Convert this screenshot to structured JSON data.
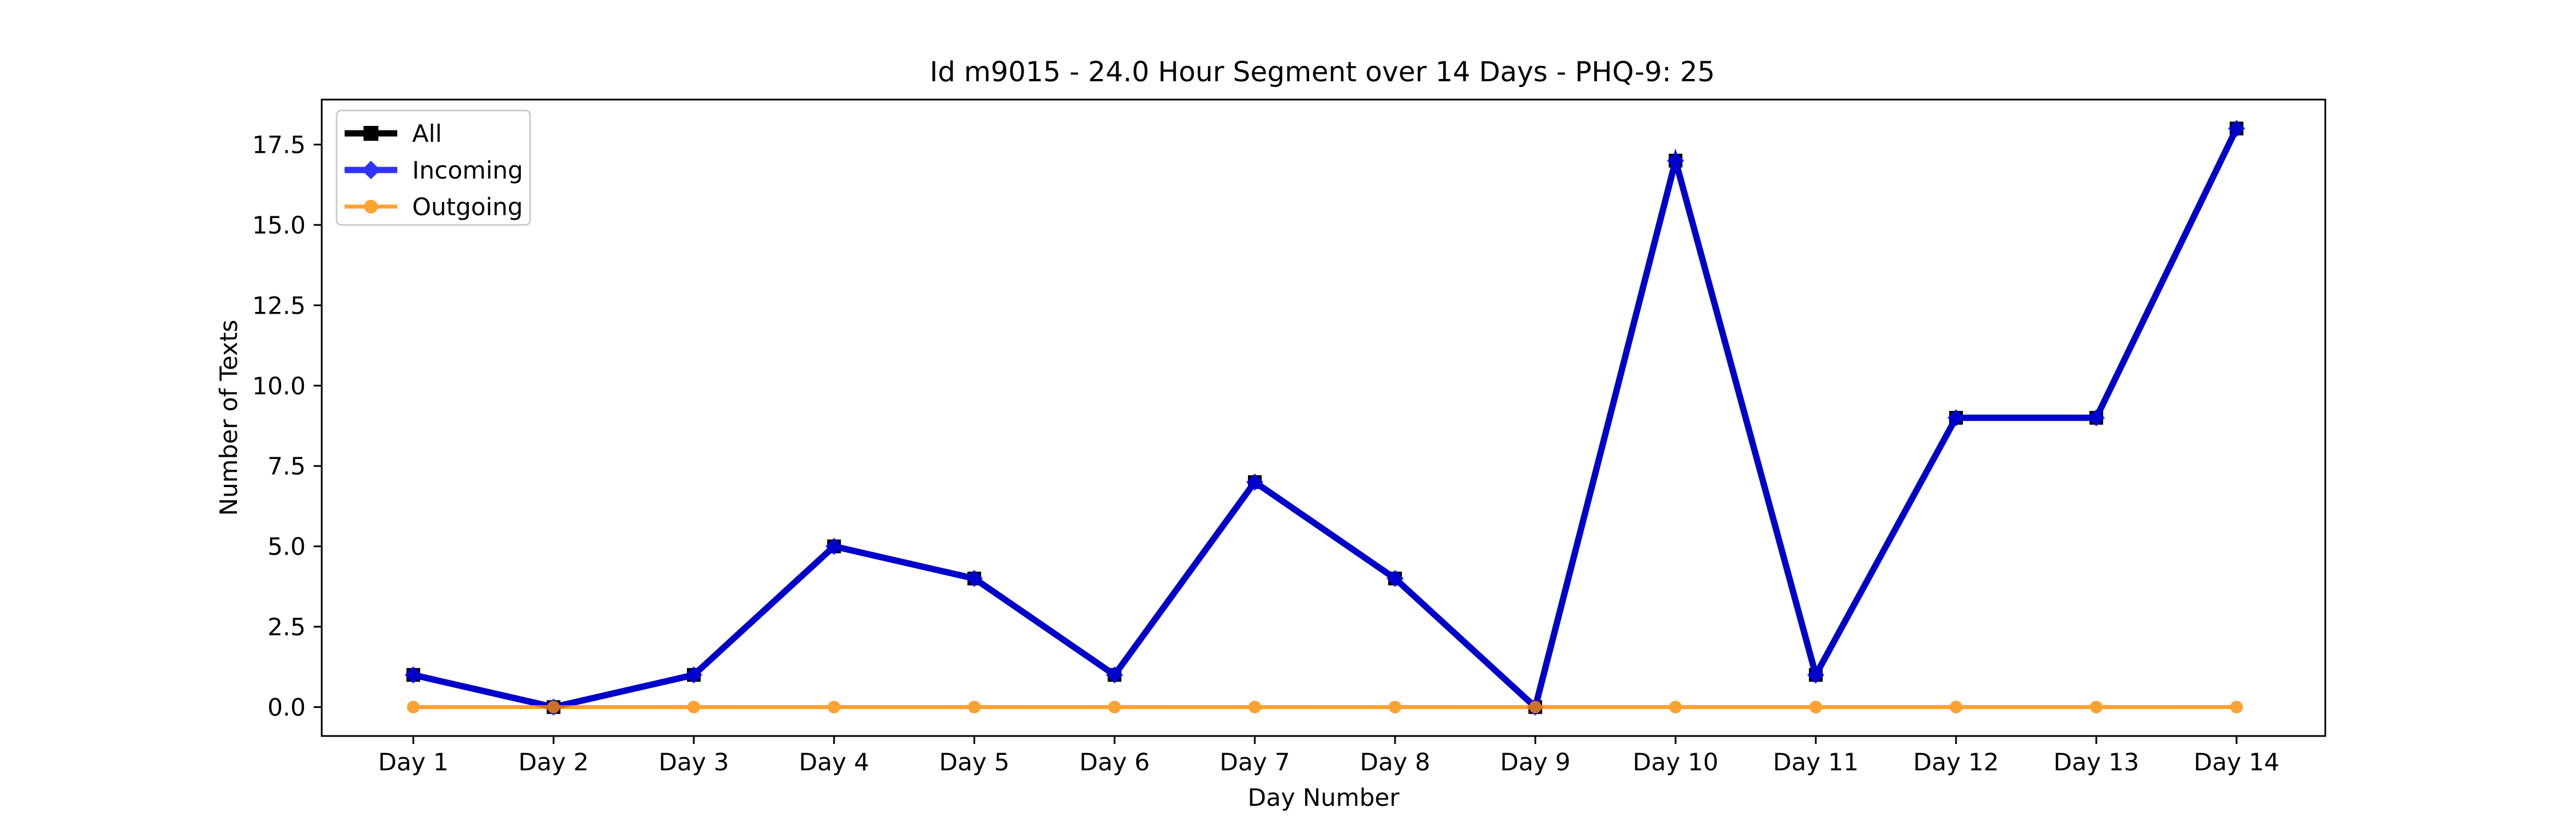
{
  "chart_data": {
    "type": "line",
    "title": "Id m9015 - 24.0 Hour Segment over 14 Days - PHQ-9: 25",
    "xlabel": "Day Number",
    "ylabel": "Number of Texts",
    "categories": [
      "Day 1",
      "Day 2",
      "Day 3",
      "Day 4",
      "Day 5",
      "Day 6",
      "Day 7",
      "Day 8",
      "Day 9",
      "Day 10",
      "Day 11",
      "Day 12",
      "Day 13",
      "Day 14"
    ],
    "ylim": [
      -0.9,
      18.9
    ],
    "yticks": [
      "0.0",
      "2.5",
      "5.0",
      "7.5",
      "10.0",
      "12.5",
      "15.0",
      "17.5"
    ],
    "grid": false,
    "legend_position": "upper-left",
    "series": [
      {
        "name": "All",
        "values": [
          1,
          0,
          1,
          5,
          4,
          1,
          7,
          4,
          0,
          17,
          1,
          9,
          9,
          18
        ],
        "color": "#000000",
        "marker": "square"
      },
      {
        "name": "Incoming",
        "values": [
          1,
          0,
          1,
          5,
          4,
          1,
          7,
          4,
          0,
          17,
          1,
          9,
          9,
          18
        ],
        "color": "#0000ff",
        "marker": "diamond"
      },
      {
        "name": "Outgoing",
        "values": [
          0,
          0,
          0,
          0,
          0,
          0,
          0,
          0,
          0,
          0,
          0,
          0,
          0,
          0
        ],
        "color": "#ff8c00",
        "marker": "circle"
      }
    ]
  }
}
